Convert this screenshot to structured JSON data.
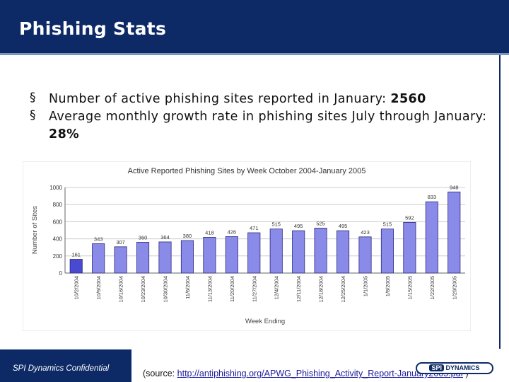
{
  "slide": {
    "title": "Phishing Stats",
    "bullets": [
      {
        "mark": "§",
        "text": "Number of active phishing sites reported in January: ",
        "bold": "2560"
      },
      {
        "mark": "§",
        "text": "Average monthly growth rate in phishing sites July through January: ",
        "bold": "28%"
      }
    ]
  },
  "footer": {
    "confidential": "SPI Dynamics Confidential",
    "source_prefix": "(source: ",
    "source_link": "http://antiphishing.org/APWG_Phishing_Activity_Report-January2005.pdf",
    "source_suffix": " )",
    "logo_spi": "SPI",
    "logo_rest": "DYNAMICS"
  },
  "colors": {
    "title_bar": "#0d2a66",
    "bar_fill": "#8a8ae8",
    "bar_first_fill": "#4a4ad0",
    "axis": "#666666"
  },
  "chart_data": {
    "type": "bar",
    "title": "Active Reported Phishing Sites by Week October 2004-January 2005",
    "xlabel": "Week Ending",
    "ylabel": "Number of Sites",
    "ylim": [
      0,
      1000
    ],
    "yticks": [
      0,
      200,
      400,
      600,
      800,
      1000
    ],
    "grid": true,
    "categories": [
      "10/2/2004",
      "10/9/2004",
      "10/16/2004",
      "10/23/2004",
      "10/30/2004",
      "11/6/2004",
      "11/13/2004",
      "11/20/2004",
      "11/27/2004",
      "12/4/2004",
      "12/11/2004",
      "12/18/2004",
      "12/25/2004",
      "1/1/2005",
      "1/8/2005",
      "1/15/2005",
      "1/22/2005",
      "1/29/2005"
    ],
    "values": [
      161,
      343,
      307,
      360,
      364,
      380,
      418,
      426,
      471,
      515,
      495,
      525,
      495,
      423,
      515,
      592,
      833,
      948
    ]
  }
}
